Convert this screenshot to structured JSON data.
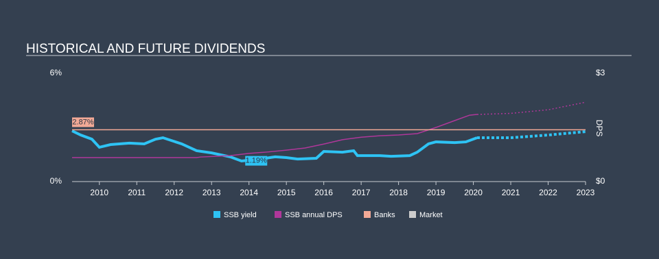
{
  "chart_data": {
    "type": "line",
    "title": "HISTORICAL AND FUTURE DIVIDENDS",
    "y2_label": "DPS",
    "xlim": [
      2009.27,
      2023
    ],
    "xticks": [
      2010,
      2011,
      2012,
      2013,
      2014,
      2015,
      2016,
      2017,
      2018,
      2019,
      2020,
      2021,
      2022,
      2023
    ],
    "ylim": [
      0,
      6
    ],
    "yticks": [
      {
        "value": 0,
        "label": "0%"
      },
      {
        "value": 6,
        "label": "6%"
      }
    ],
    "y2lim": [
      0,
      3
    ],
    "y2ticks": [
      {
        "value": 0,
        "label": "$0"
      },
      {
        "value": 3,
        "label": "$3"
      }
    ],
    "series": [
      {
        "name": "SSB yield",
        "color": "#2ec3f4",
        "line_width": 4,
        "x": [
          2009.27,
          2009.5,
          2009.8,
          2010.0,
          2010.3,
          2010.8,
          2011.2,
          2011.5,
          2011.7,
          2012.2,
          2012.6,
          2013.0,
          2013.5,
          2013.8,
          2014.3,
          2014.7,
          2015.0,
          2015.3,
          2015.8,
          2016.0,
          2016.5,
          2016.8,
          2016.9,
          2017.5,
          2017.8,
          2018.3,
          2018.5,
          2018.8,
          2019.0,
          2019.5,
          2019.8,
          2020.1
        ],
        "values": [
          2.81,
          2.58,
          2.35,
          1.9,
          2.05,
          2.13,
          2.09,
          2.35,
          2.43,
          2.09,
          1.71,
          1.59,
          1.37,
          1.14,
          1.25,
          1.37,
          1.33,
          1.25,
          1.29,
          1.67,
          1.63,
          1.71,
          1.44,
          1.44,
          1.4,
          1.44,
          1.63,
          2.09,
          2.2,
          2.16,
          2.2,
          2.43
        ]
      },
      {
        "color": "#2ec3f4",
        "line_width": 4,
        "dashed": true,
        "x": [
          2020.1,
          2021,
          2022,
          2023
        ],
        "values": [
          2.43,
          2.43,
          2.58,
          2.77
        ]
      },
      {
        "name": "SSB annual DPS",
        "color": "#b0379a",
        "line_width": 1.5,
        "axis": "y2",
        "x": [
          2009.27,
          2012.6,
          2012.7,
          2013.5,
          2014,
          2014.5,
          2015,
          2015.5,
          2016,
          2016.5,
          2017,
          2017.5,
          2018,
          2018.5,
          2019,
          2019.5,
          2019.9,
          2020.1
        ],
        "values": [
          0.665,
          0.665,
          0.68,
          0.72,
          0.78,
          0.82,
          0.87,
          0.93,
          1.04,
          1.16,
          1.23,
          1.27,
          1.29,
          1.33,
          1.5,
          1.69,
          1.84,
          1.86
        ]
      },
      {
        "color": "#b0379a",
        "line_width": 1.5,
        "axis": "y2",
        "dashed": true,
        "x": [
          2020.1,
          2021,
          2022,
          2023
        ],
        "values": [
          1.86,
          1.89,
          1.99,
          2.2
        ]
      },
      {
        "name": "Banks",
        "color": "#f2a996",
        "line_width": 1.5,
        "x": [
          2009.27,
          2023
        ],
        "values": [
          2.87,
          2.87
        ]
      },
      {
        "name": "Market",
        "color": "#cccccc",
        "line_width": 1.5,
        "x": [],
        "values": []
      }
    ],
    "annotations": [
      {
        "x": 2009.27,
        "value": 2.87,
        "label": "2.87%",
        "color": "#f2a996"
      },
      {
        "x": 2013.9,
        "value": 1.19,
        "label": "1.19%",
        "color": "#2ec3f4"
      }
    ]
  }
}
